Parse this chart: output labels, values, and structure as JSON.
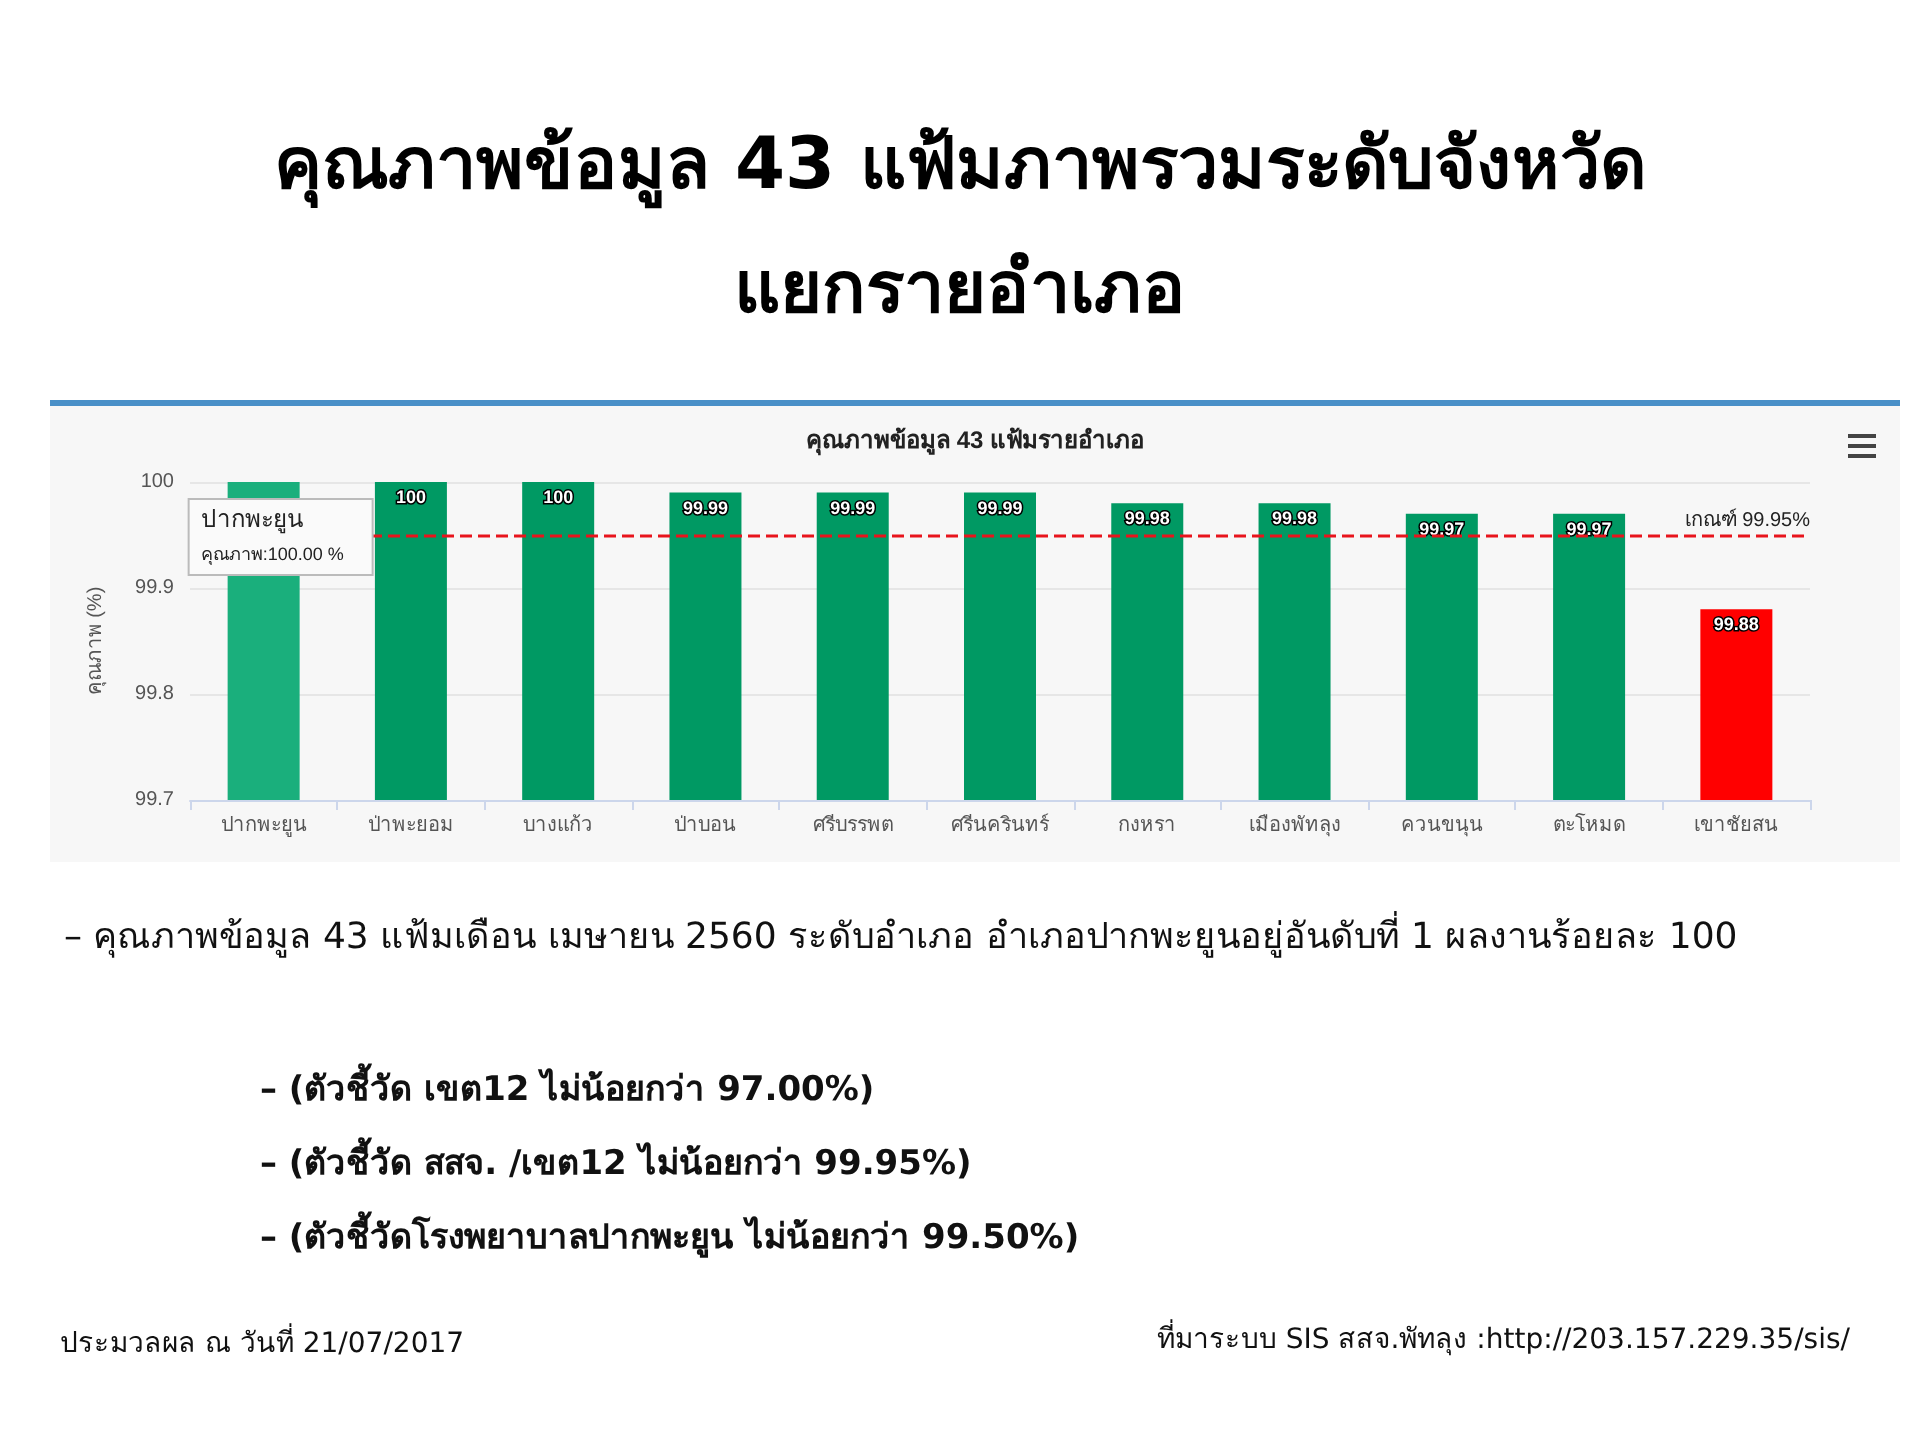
{
  "chart_data": {
    "type": "bar",
    "title": "คุณภาพข้อมูล 43 แฟ้มภาพรวมระดับจังหวัด\nแยกรายอำเภอ",
    "subtitle": "คุณภาพข้อมูล 43 แฟ้มรายอำเภอ",
    "ylabel": "คุณภาพ (%)",
    "categories": [
      "ปากพะยูน",
      "ป่าพะยอม",
      "บางแก้ว",
      "ป่าบอน",
      "ศรีบรรพต",
      "ศรีนครินทร์",
      "กงหรา",
      "เมืองพัทลุง",
      "ควนขนุน",
      "ตะโหมด",
      "เขาชัยสน"
    ],
    "values": [
      100,
      100,
      100,
      99.99,
      99.99,
      99.99,
      99.98,
      99.98,
      99.97,
      99.97,
      99.88
    ],
    "value_labels": [
      null,
      "100",
      "100",
      "99.99",
      "99.99",
      "99.99",
      "99.98",
      "99.98",
      "99.97",
      "99.97",
      "99.88"
    ],
    "colors": [
      "#1aaf7c",
      "#009963",
      "#009963",
      "#009963",
      "#009963",
      "#009963",
      "#009963",
      "#009963",
      "#009963",
      "#009963",
      "#ff0000"
    ],
    "ylim": [
      99.7,
      100
    ],
    "yticks": [
      99.7,
      99.8,
      99.9,
      100
    ],
    "grid": "y",
    "ref_lines": [
      {
        "axis": "y",
        "value": 99.95,
        "label": "เกณฑ์ 99.95%",
        "color": "#e8141c",
        "line_style": "dashed"
      }
    ],
    "annotations": [
      "– คุณภาพข้อมูล 43 แฟ้มเดือน เมษายน 2560 ระดับอำเภอ อำเภอปากพะยูนอยู่อันดับที่ 1 ผลงานร้อยละ 100",
      "– (ตัวชี้วัด เขต12 ไม่น้อยกว่า 97.00%)",
      "– (ตัวชี้วัด สสจ. /เขต12 ไม่น้อยกว่า 99.95%)",
      "– (ตัวชี้วัดโรงพยาบาลปากพะยูน ไม่น้อยกว่า 99.50%)",
      "ประมวลผล ณ วันที่ 21/07/2017",
      "ที่มาระบบ SIS สสจ.พัทลุง :http://203.157.229.35/sis/",
      {
        "text": "ปากพะยูน\nคุณภาพ:100.00 %",
        "x": "ปากพะยูน",
        "y": 100
      }
    ]
  }
}
